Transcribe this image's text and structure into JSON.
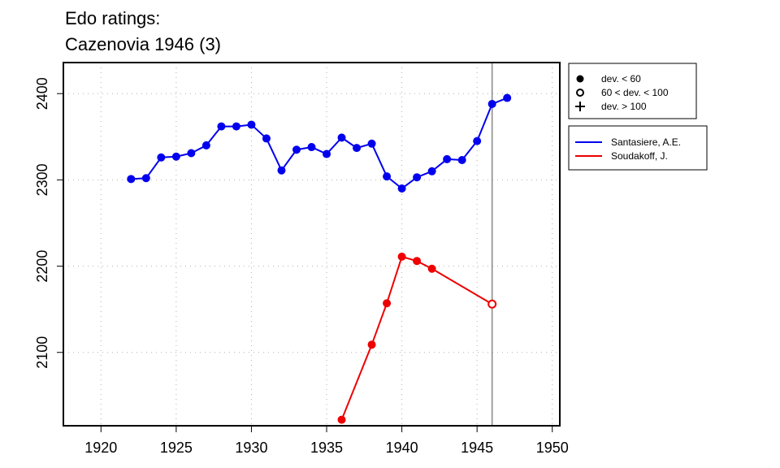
{
  "chart_data": {
    "type": "line",
    "title_lines": [
      "Edo ratings:",
      "Cazenovia 1946 (3)"
    ],
    "xlabel": "",
    "ylabel": "",
    "xlim": [
      1917.5,
      1950.5
    ],
    "ylim": [
      2015,
      2436
    ],
    "x_ticks": [
      1920,
      1925,
      1930,
      1935,
      1940,
      1945,
      1950
    ],
    "y_ticks": [
      2100,
      2200,
      2300,
      2400
    ],
    "grid": true,
    "vline_x": 1946,
    "marker_legend": [
      {
        "symbol": "filled-circle",
        "label": "dev. < 60"
      },
      {
        "symbol": "open-circle",
        "label": "60 < dev. < 100"
      },
      {
        "symbol": "plus",
        "label": "dev. > 100"
      }
    ],
    "series": [
      {
        "name": "Santasiere, A.E.",
        "color": "#0000ee",
        "points": [
          {
            "x": 1922,
            "y": 2301,
            "m": "filled"
          },
          {
            "x": 1923,
            "y": 2302,
            "m": "filled"
          },
          {
            "x": 1924,
            "y": 2326,
            "m": "filled"
          },
          {
            "x": 1925,
            "y": 2327,
            "m": "filled"
          },
          {
            "x": 1926,
            "y": 2331,
            "m": "filled"
          },
          {
            "x": 1927,
            "y": 2340,
            "m": "filled"
          },
          {
            "x": 1928,
            "y": 2362,
            "m": "filled"
          },
          {
            "x": 1929,
            "y": 2362,
            "m": "filled"
          },
          {
            "x": 1930,
            "y": 2364,
            "m": "filled"
          },
          {
            "x": 1931,
            "y": 2348,
            "m": "filled"
          },
          {
            "x": 1932,
            "y": 2311,
            "m": "filled"
          },
          {
            "x": 1933,
            "y": 2335,
            "m": "filled"
          },
          {
            "x": 1934,
            "y": 2338,
            "m": "filled"
          },
          {
            "x": 1935,
            "y": 2330,
            "m": "filled"
          },
          {
            "x": 1936,
            "y": 2349,
            "m": "filled"
          },
          {
            "x": 1937,
            "y": 2337,
            "m": "filled"
          },
          {
            "x": 1938,
            "y": 2342,
            "m": "filled"
          },
          {
            "x": 1939,
            "y": 2304,
            "m": "filled"
          },
          {
            "x": 1940,
            "y": 2290,
            "m": "filled"
          },
          {
            "x": 1941,
            "y": 2303,
            "m": "filled"
          },
          {
            "x": 1942,
            "y": 2310,
            "m": "filled"
          },
          {
            "x": 1943,
            "y": 2324,
            "m": "filled"
          },
          {
            "x": 1944,
            "y": 2323,
            "m": "filled"
          },
          {
            "x": 1945,
            "y": 2345,
            "m": "filled"
          },
          {
            "x": 1946,
            "y": 2388,
            "m": "filled"
          },
          {
            "x": 1947,
            "y": 2395,
            "m": "filled"
          }
        ]
      },
      {
        "name": "Soudakoff, J.",
        "color": "#ee0000",
        "points": [
          {
            "x": 1936,
            "y": 2022,
            "m": "filled"
          },
          {
            "x": 1938,
            "y": 2109,
            "m": "filled"
          },
          {
            "x": 1939,
            "y": 2157,
            "m": "filled"
          },
          {
            "x": 1940,
            "y": 2211,
            "m": "filled"
          },
          {
            "x": 1941,
            "y": 2206,
            "m": "filled"
          },
          {
            "x": 1942,
            "y": 2197,
            "m": "filled"
          },
          {
            "x": 1946,
            "y": 2156,
            "m": "open"
          }
        ]
      }
    ]
  }
}
